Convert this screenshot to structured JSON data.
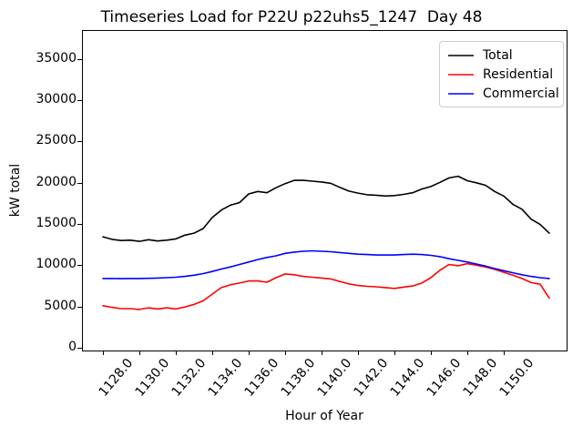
{
  "title": "Timeseries Load for P22U p22uhs5_1247  Day 48",
  "chart_data": {
    "type": "line",
    "title": "Timeseries Load for P22U p22uhs5_1247  Day 48",
    "xlabel": "Hour of Year",
    "ylabel": "kW total",
    "grid": false,
    "legend_position": "upper right",
    "xlim": [
      1126.85,
      1153.45
    ],
    "ylim": [
      -330,
      38520
    ],
    "x_ticks": [
      1128,
      1130,
      1132,
      1134,
      1136,
      1138,
      1140,
      1142,
      1144,
      1146,
      1148,
      1150
    ],
    "x_tick_labels": [
      "1128.0",
      "1130.0",
      "1132.0",
      "1134.0",
      "1136.0",
      "1138.0",
      "1140.0",
      "1142.0",
      "1144.0",
      "1146.0",
      "1148.0",
      "1150.0"
    ],
    "x_tick_rotation": 50,
    "y_ticks": [
      0,
      5000,
      10000,
      15000,
      20000,
      25000,
      30000,
      35000
    ],
    "y_tick_labels": [
      "0",
      "5000",
      "10000",
      "15000",
      "20000",
      "25000",
      "30000",
      "35000"
    ],
    "x": [
      1128.0,
      1128.5,
      1129.0,
      1129.5,
      1130.0,
      1130.5,
      1131.0,
      1131.5,
      1132.0,
      1132.5,
      1133.0,
      1133.5,
      1134.0,
      1134.5,
      1135.0,
      1135.5,
      1136.0,
      1136.5,
      1137.0,
      1137.5,
      1138.0,
      1138.5,
      1139.0,
      1139.5,
      1140.0,
      1140.5,
      1141.0,
      1141.5,
      1142.0,
      1142.5,
      1143.0,
      1143.5,
      1144.0,
      1144.5,
      1145.0,
      1145.5,
      1146.0,
      1146.5,
      1147.0,
      1147.5,
      1148.0,
      1148.5,
      1149.0,
      1149.5,
      1150.0,
      1150.5,
      1151.0,
      1151.5,
      1152.0,
      1152.5
    ],
    "series": [
      {
        "name": "Total",
        "color": "#000000",
        "values": [
          13450,
          13150,
          13000,
          13050,
          12900,
          13100,
          12950,
          13050,
          13200,
          13650,
          13900,
          14450,
          15800,
          16700,
          17300,
          17600,
          18650,
          18950,
          18800,
          19400,
          19900,
          20300,
          20300,
          20200,
          20100,
          19950,
          19450,
          19000,
          18750,
          18550,
          18500,
          18400,
          18450,
          18600,
          18800,
          19250,
          19550,
          20050,
          20600,
          20800,
          20250,
          20000,
          19700,
          18950,
          18400,
          17400,
          16800,
          15600,
          14950,
          13900
        ]
      },
      {
        "name": "Residential",
        "color": "#ff0000",
        "values": [
          5100,
          4900,
          4750,
          4750,
          4650,
          4850,
          4700,
          4850,
          4700,
          4950,
          5250,
          5700,
          6500,
          7300,
          7650,
          7850,
          8100,
          8100,
          7950,
          8500,
          8950,
          8850,
          8650,
          8550,
          8450,
          8350,
          8050,
          7750,
          7550,
          7450,
          7400,
          7300,
          7200,
          7350,
          7500,
          7850,
          8500,
          9400,
          10100,
          9950,
          10200,
          10000,
          9800,
          9500,
          9150,
          8800,
          8400,
          7900,
          7700,
          6000
        ]
      },
      {
        "name": "Commercial",
        "color": "#0000ff",
        "values": [
          8400,
          8400,
          8380,
          8400,
          8400,
          8420,
          8450,
          8500,
          8550,
          8650,
          8800,
          9000,
          9250,
          9550,
          9800,
          10100,
          10400,
          10700,
          10950,
          11150,
          11450,
          11600,
          11700,
          11750,
          11700,
          11650,
          11550,
          11450,
          11350,
          11300,
          11250,
          11250,
          11250,
          11300,
          11350,
          11300,
          11200,
          11050,
          10800,
          10600,
          10400,
          10150,
          9900,
          9600,
          9350,
          9100,
          8850,
          8650,
          8500,
          8400
        ]
      }
    ]
  }
}
